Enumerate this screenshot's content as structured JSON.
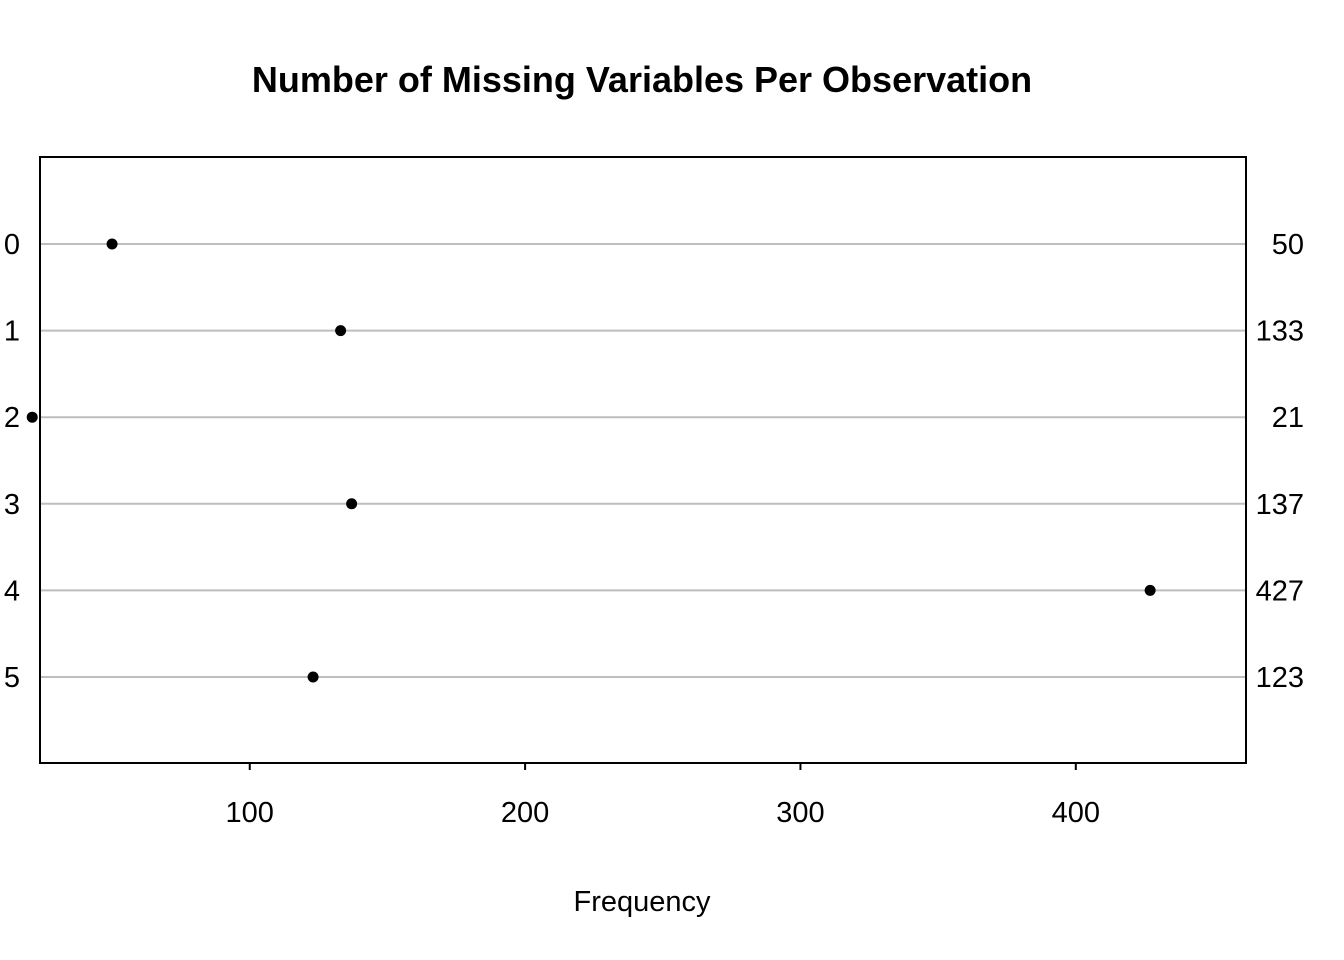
{
  "chart_data": {
    "type": "scatter",
    "subtype": "dotchart",
    "title": "Number of Missing Variables Per Observation",
    "xlabel": "Frequency",
    "ylabel": "",
    "categories": [
      "0",
      "1",
      "2",
      "3",
      "4",
      "5"
    ],
    "values": [
      50,
      133,
      21,
      137,
      427,
      123
    ],
    "value_labels": [
      "50",
      "133",
      "21",
      "137",
      "427",
      "123"
    ],
    "x_ticks": [
      100,
      200,
      300,
      400
    ],
    "x_tick_labels": [
      "100",
      "200",
      "300",
      "400"
    ],
    "xlim": [
      5,
      443
    ],
    "grid": "horizontal guide lines at each category",
    "legend": "none",
    "colors": {
      "points": "#000000",
      "guide_lines": "#bebebe",
      "frame": "#000000",
      "text": "#000000"
    }
  }
}
